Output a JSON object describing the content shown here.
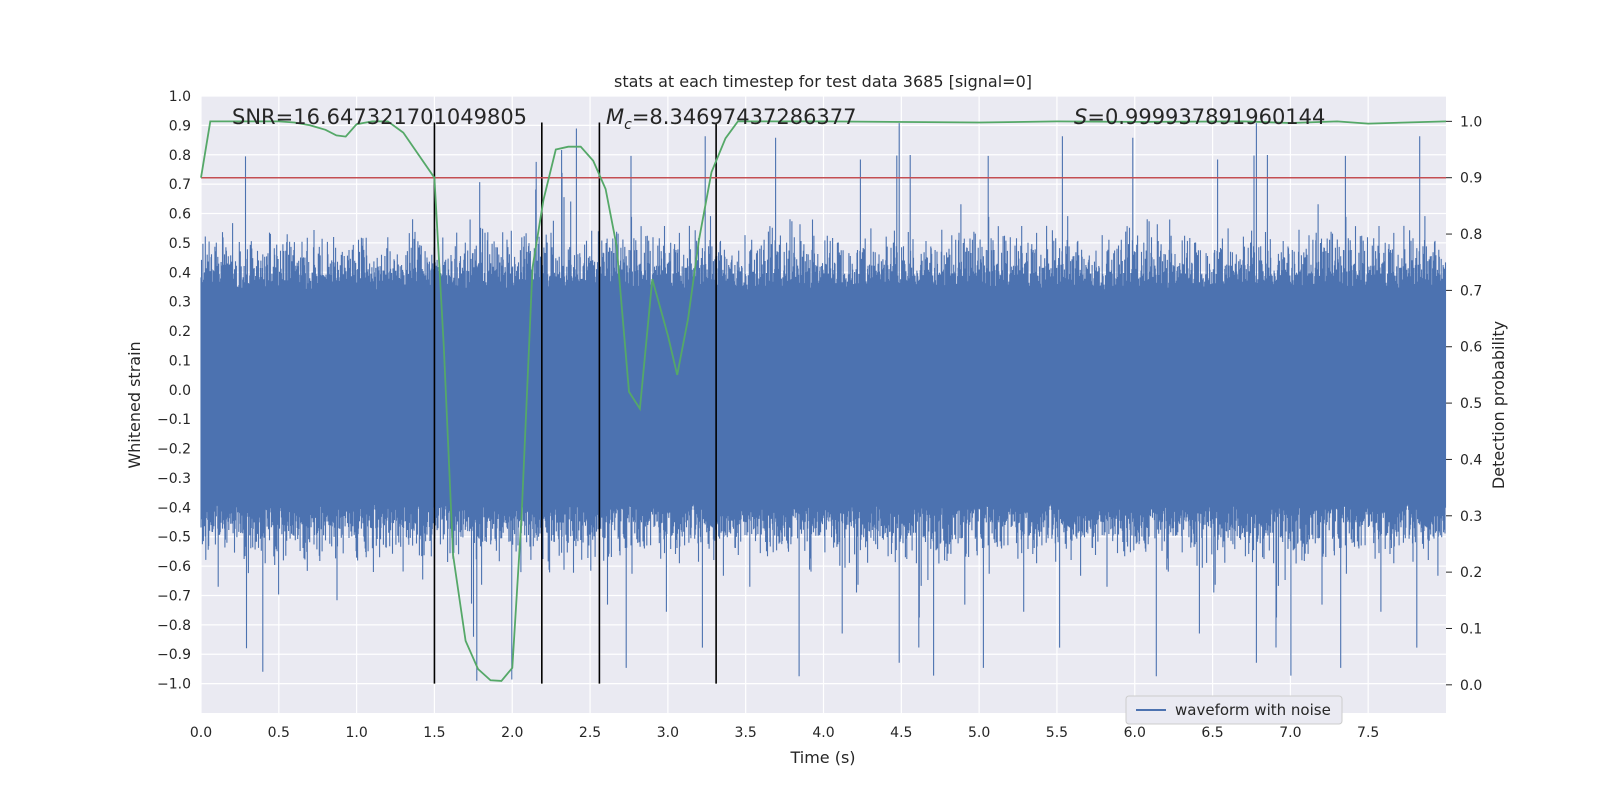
{
  "chart_data": {
    "type": "line",
    "title": "stats at each timestep for test data 3685 [signal=0]",
    "xlabel": "Time (s)",
    "ylabel": "Whitened strain",
    "y2label": "Detection probability",
    "xlim": [
      0.0,
      8.0
    ],
    "ylim": [
      -1.1,
      1.0
    ],
    "y2lim": [
      -0.05,
      1.045
    ],
    "xticks": [
      "0.0",
      "0.5",
      "1.0",
      "1.5",
      "2.0",
      "2.5",
      "3.0",
      "3.5",
      "4.0",
      "4.5",
      "5.0",
      "5.5",
      "6.0",
      "6.5",
      "7.0",
      "7.5"
    ],
    "yticks": [
      "1.0",
      "0.9",
      "0.8",
      "0.7",
      "0.6",
      "0.5",
      "0.4",
      "0.3",
      "0.2",
      "0.1",
      "0.0",
      "−0.1",
      "−0.2",
      "−0.3",
      "−0.4",
      "−0.5",
      "−0.6",
      "−0.7",
      "−0.8",
      "−0.9",
      "−1.0"
    ],
    "y2ticks": [
      "1.0",
      "0.9",
      "0.8",
      "0.7",
      "0.6",
      "0.5",
      "0.4",
      "0.3",
      "0.2",
      "0.1",
      "0.0"
    ],
    "annotations": {
      "snr": "SNR=16.647321701049805",
      "mc_symbol": "M",
      "mc_sub": "c",
      "mc_value": "=8.34697437286377",
      "s_symbol": "S",
      "s_value": "=0.999937891960144"
    },
    "legend": {
      "label": "waveform with noise",
      "position": "lower right"
    },
    "threshold": 0.9,
    "vertical_lines": [
      1.5,
      2.19,
      2.56,
      3.31
    ],
    "series": [
      {
        "name": "waveform with noise",
        "axis": "left",
        "color": "#4c72b0",
        "envelope": {
          "core": 0.34,
          "peak_max": 0.91,
          "peak_min": -1.0,
          "seed": 3685
        }
      },
      {
        "name": "detection probability",
        "axis": "right",
        "color": "#55a868",
        "x": [
          0.0,
          0.06,
          0.12,
          0.2,
          0.3,
          0.4,
          0.5,
          0.6,
          0.7,
          0.8,
          0.87,
          0.93,
          1.0,
          1.1,
          1.2,
          1.3,
          1.4,
          1.5,
          1.56,
          1.62,
          1.7,
          1.78,
          1.86,
          1.93,
          2.0,
          2.06,
          2.13,
          2.2,
          2.28,
          2.36,
          2.44,
          2.52,
          2.6,
          2.67,
          2.75,
          2.82,
          2.9,
          3.0,
          3.06,
          3.13,
          3.2,
          3.28,
          3.37,
          3.45,
          3.6,
          4.0,
          5.0,
          5.5,
          6.0,
          6.7,
          7.0,
          7.3,
          7.5,
          8.0
        ],
        "values": [
          0.9,
          1.0,
          1.0,
          1.0,
          1.0,
          1.0,
          1.0,
          0.998,
          0.993,
          0.985,
          0.975,
          0.973,
          0.995,
          1.0,
          1.0,
          0.98,
          0.94,
          0.9,
          0.6,
          0.23,
          0.078,
          0.028,
          0.008,
          0.007,
          0.03,
          0.3,
          0.74,
          0.86,
          0.95,
          0.955,
          0.955,
          0.93,
          0.88,
          0.78,
          0.52,
          0.49,
          0.72,
          0.62,
          0.55,
          0.65,
          0.79,
          0.91,
          0.97,
          1.0,
          1.0,
          1.0,
          0.998,
          1.0,
          0.999,
          1.0,
          0.997,
          1.0,
          0.996,
          1.0
        ]
      }
    ]
  }
}
